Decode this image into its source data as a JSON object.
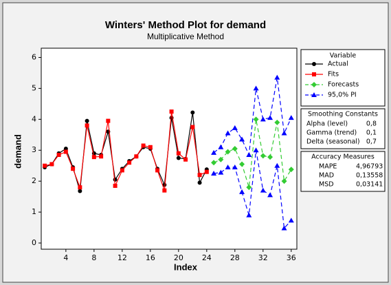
{
  "chart_data": {
    "type": "line",
    "title": "Winters' Method Plot for demand",
    "subtitle": "Multiplicative Method",
    "xlabel": "Index",
    "ylabel": "demand",
    "xlim": [
      0.5,
      36.8
    ],
    "xticks": [
      4,
      8,
      12,
      16,
      20,
      24,
      28,
      32,
      36
    ],
    "ylim": [
      -0.2,
      6.3
    ],
    "yticks": [
      0,
      1,
      2,
      3,
      4,
      5,
      6
    ],
    "legend_title": "Variable",
    "series": [
      {
        "name": "Actual",
        "color": "#000000",
        "marker": "circle",
        "dashed": false,
        "x": [
          1,
          2,
          3,
          4,
          5,
          6,
          7,
          8,
          9,
          10,
          11,
          12,
          13,
          14,
          15,
          16,
          17,
          18,
          19,
          20,
          21,
          22,
          23,
          24
        ],
        "values": [
          2.45,
          2.55,
          2.9,
          3.05,
          2.45,
          1.68,
          3.95,
          2.9,
          2.85,
          3.6,
          2.05,
          2.4,
          2.65,
          2.8,
          3.1,
          3.05,
          2.4,
          1.88,
          4.05,
          2.75,
          2.72,
          4.22,
          1.95,
          2.38
        ]
      },
      {
        "name": "Fits",
        "color": "#ff0000",
        "marker": "square",
        "dashed": false,
        "x": [
          1,
          2,
          3,
          4,
          5,
          6,
          7,
          8,
          9,
          10,
          11,
          12,
          13,
          14,
          15,
          16,
          17,
          18,
          19,
          20,
          21,
          22,
          23,
          24
        ],
        "values": [
          2.5,
          2.55,
          2.85,
          2.95,
          2.4,
          1.8,
          3.8,
          2.78,
          2.8,
          3.95,
          1.85,
          2.35,
          2.6,
          2.8,
          3.15,
          3.1,
          2.35,
          1.7,
          4.25,
          2.9,
          2.7,
          3.75,
          2.2,
          2.3
        ]
      },
      {
        "name": "Forecasts",
        "color": "#33cc33",
        "marker": "diamond",
        "dashed": true,
        "x": [
          25,
          26,
          27,
          28,
          29,
          30,
          31,
          32,
          33,
          34,
          35,
          36
        ],
        "values": [
          2.6,
          2.7,
          2.95,
          3.05,
          2.55,
          1.8,
          4.0,
          2.82,
          2.78,
          3.9,
          2.0,
          2.38
        ]
      },
      {
        "name": "95,0% PI",
        "color": "#0000ff",
        "marker": "triangle",
        "dashed": true,
        "x": [
          25,
          26,
          27,
          28,
          29,
          30,
          31,
          32,
          33,
          34,
          35,
          36
        ],
        "upper": [
          2.92,
          3.1,
          3.55,
          3.72,
          3.35,
          2.85,
          5.0,
          4.0,
          4.05,
          5.35,
          3.55,
          4.05
        ],
        "lower": [
          2.25,
          2.28,
          2.45,
          2.45,
          1.65,
          0.9,
          3.0,
          1.7,
          1.55,
          2.5,
          0.48,
          0.73
        ]
      }
    ],
    "tables": [
      {
        "title": "Smoothing Constants",
        "rows": [
          [
            "Alpha (level)",
            "0,8"
          ],
          [
            "Gamma (trend)",
            "0,1"
          ],
          [
            "Delta (seasonal)",
            "0,7"
          ]
        ]
      },
      {
        "title": "Accuracy Measures",
        "rows": [
          [
            "MAPE",
            "4,96793"
          ],
          [
            "MAD",
            "0,13558"
          ],
          [
            "MSD",
            "0,03141"
          ]
        ]
      }
    ]
  }
}
